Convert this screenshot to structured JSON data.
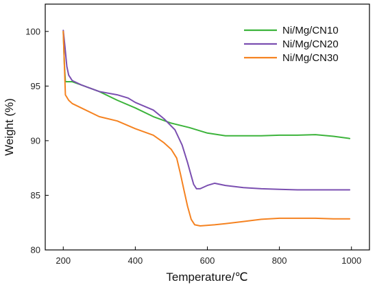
{
  "chart_data": {
    "type": "line",
    "title": "",
    "xlabel": "Temperature/℃",
    "ylabel": "Weight (%)",
    "xlim": [
      150,
      1050
    ],
    "ylim": [
      80,
      102.5
    ],
    "x_ticks": [
      200,
      400,
      600,
      800,
      1000
    ],
    "y_ticks": [
      80,
      85,
      90,
      95,
      100
    ],
    "grid": false,
    "legend_position": "top-right",
    "series": [
      {
        "name": "Ni/Mg/CN10",
        "color": "#3bb33a",
        "points": [
          [
            200,
            100.0
          ],
          [
            203,
            97.0
          ],
          [
            206,
            95.4
          ],
          [
            215,
            95.4
          ],
          [
            225,
            95.4
          ],
          [
            250,
            95.1
          ],
          [
            300,
            94.5
          ],
          [
            350,
            93.7
          ],
          [
            400,
            93.0
          ],
          [
            450,
            92.2
          ],
          [
            500,
            91.6
          ],
          [
            550,
            91.2
          ],
          [
            600,
            90.7
          ],
          [
            650,
            90.45
          ],
          [
            700,
            90.45
          ],
          [
            750,
            90.45
          ],
          [
            800,
            90.5
          ],
          [
            850,
            90.5
          ],
          [
            900,
            90.55
          ],
          [
            950,
            90.4
          ],
          [
            995,
            90.2
          ]
        ]
      },
      {
        "name": "Ni/Mg/CN20",
        "color": "#7a4eb0",
        "points": [
          [
            200,
            100.1
          ],
          [
            205,
            98.5
          ],
          [
            210,
            96.8
          ],
          [
            215,
            96.0
          ],
          [
            225,
            95.5
          ],
          [
            250,
            95.1
          ],
          [
            300,
            94.5
          ],
          [
            350,
            94.2
          ],
          [
            380,
            93.9
          ],
          [
            400,
            93.5
          ],
          [
            450,
            92.8
          ],
          [
            480,
            92.0
          ],
          [
            510,
            91.0
          ],
          [
            530,
            89.6
          ],
          [
            545,
            88.0
          ],
          [
            555,
            86.8
          ],
          [
            562,
            86.0
          ],
          [
            570,
            85.6
          ],
          [
            580,
            85.6
          ],
          [
            600,
            85.9
          ],
          [
            620,
            86.1
          ],
          [
            650,
            85.9
          ],
          [
            700,
            85.7
          ],
          [
            750,
            85.6
          ],
          [
            800,
            85.55
          ],
          [
            850,
            85.5
          ],
          [
            900,
            85.5
          ],
          [
            950,
            85.5
          ],
          [
            995,
            85.5
          ]
        ]
      },
      {
        "name": "Ni/Mg/CN30",
        "color": "#f58220",
        "points": [
          [
            200,
            100.0
          ],
          [
            203,
            97.0
          ],
          [
            206,
            94.2
          ],
          [
            215,
            93.7
          ],
          [
            225,
            93.4
          ],
          [
            250,
            93.0
          ],
          [
            300,
            92.2
          ],
          [
            350,
            91.8
          ],
          [
            400,
            91.1
          ],
          [
            450,
            90.5
          ],
          [
            480,
            89.8
          ],
          [
            500,
            89.2
          ],
          [
            515,
            88.4
          ],
          [
            525,
            87.0
          ],
          [
            535,
            85.5
          ],
          [
            545,
            84.0
          ],
          [
            555,
            82.8
          ],
          [
            565,
            82.3
          ],
          [
            580,
            82.2
          ],
          [
            620,
            82.3
          ],
          [
            650,
            82.4
          ],
          [
            700,
            82.6
          ],
          [
            750,
            82.8
          ],
          [
            800,
            82.9
          ],
          [
            850,
            82.9
          ],
          [
            900,
            82.9
          ],
          [
            950,
            82.85
          ],
          [
            995,
            82.85
          ]
        ]
      }
    ]
  }
}
